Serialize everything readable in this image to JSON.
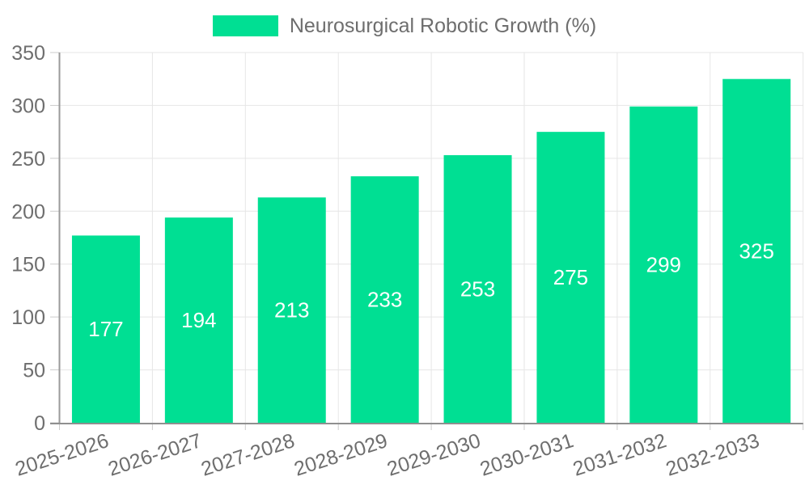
{
  "legend": {
    "label": "Neurosurgical Robotic Growth (%)"
  },
  "chart_data": {
    "type": "bar",
    "title": "Neurosurgical Robotic Growth (%)",
    "categories": [
      "2025-2026",
      "2026-2027",
      "2027-2028",
      "2028-2029",
      "2029-2030",
      "2030-2031",
      "2031-2032",
      "2032-2033"
    ],
    "values": [
      177,
      194,
      213,
      233,
      253,
      275,
      299,
      325
    ],
    "series": [
      {
        "name": "Neurosurgical Robotic Growth (%)",
        "values": [
          177,
          194,
          213,
          233,
          253,
          275,
          299,
          325
        ]
      }
    ],
    "xlabel": "",
    "ylabel": "",
    "ylim": [
      0,
      350
    ],
    "ytick_step": 50,
    "yticks": [
      0,
      50,
      100,
      150,
      200,
      250,
      300,
      350
    ],
    "grid": true,
    "legend_position": "top-center",
    "bar_label_position": "center-inside",
    "colors": {
      "bar": "#00DF93",
      "bar_label": "#ffffff",
      "axis_text": "#6e6e6e",
      "grid_line": "#e6e6e6",
      "tick_line": "#cccccc",
      "axis_line": "#8f8f8f",
      "y_axis_line": "#9a9a9a",
      "background": "#ffffff"
    }
  }
}
